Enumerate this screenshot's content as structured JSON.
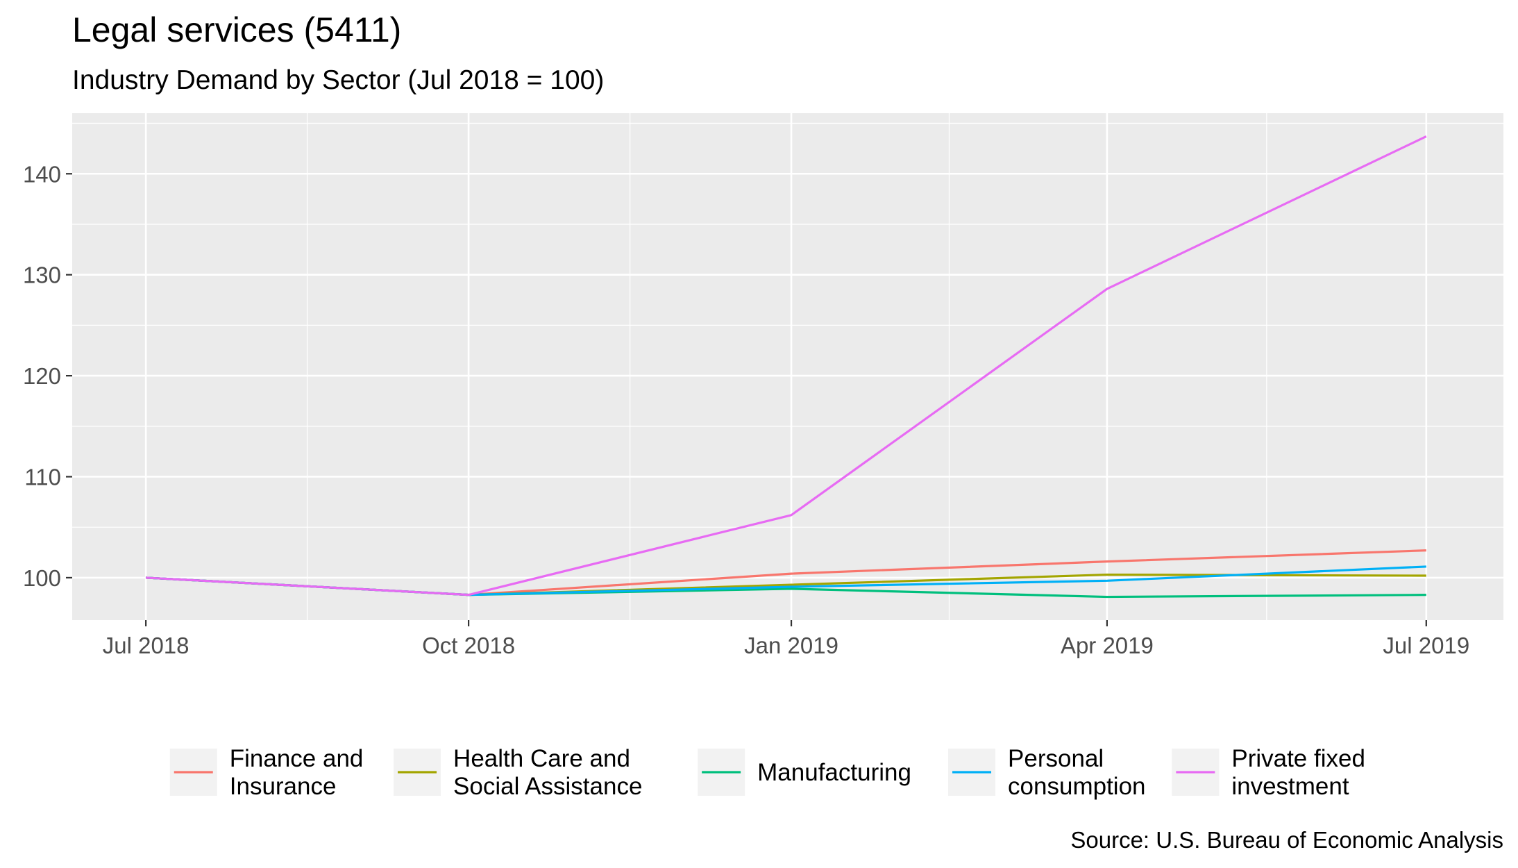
{
  "chart_data": {
    "type": "line",
    "title": "Legal services (5411)",
    "subtitle": "Industry Demand by Sector (Jul 2018 = 100)",
    "caption": "Source: U.S. Bureau of Economic Analysis",
    "xlabel": "",
    "ylabel": "",
    "x": [
      "2018-07-01",
      "2018-10-01",
      "2019-01-01",
      "2019-04-01",
      "2019-07-01"
    ],
    "x_tick_labels": [
      "Jul 2018",
      "Oct 2018",
      "Jan 2019",
      "Apr 2019",
      "Jul 2019"
    ],
    "xlim": [
      "2018-06-10",
      "2019-07-23"
    ],
    "y_ticks": [
      100,
      110,
      120,
      130,
      140
    ],
    "ylim": [
      95.8,
      146
    ],
    "grid": true,
    "legend_position": "bottom",
    "series": [
      {
        "name": "Finance and\nInsurance",
        "color": "#F8766D",
        "values": [
          100,
          98.3,
          100.4,
          101.6,
          102.7
        ]
      },
      {
        "name": "Health Care and\nSocial Assistance",
        "color": "#A3A500",
        "values": [
          100,
          98.3,
          99.3,
          100.3,
          100.2
        ]
      },
      {
        "name": "Manufacturing",
        "color": "#00BF7D",
        "values": [
          100,
          98.3,
          98.9,
          98.1,
          98.3
        ]
      },
      {
        "name": "Personal\nconsumption",
        "color": "#00B0F6",
        "values": [
          100,
          98.3,
          99.1,
          99.7,
          101.1
        ]
      },
      {
        "name": "Private fixed\ninvestment",
        "color": "#E76BF3",
        "values": [
          100,
          98.3,
          106.2,
          128.6,
          143.7
        ]
      }
    ]
  }
}
